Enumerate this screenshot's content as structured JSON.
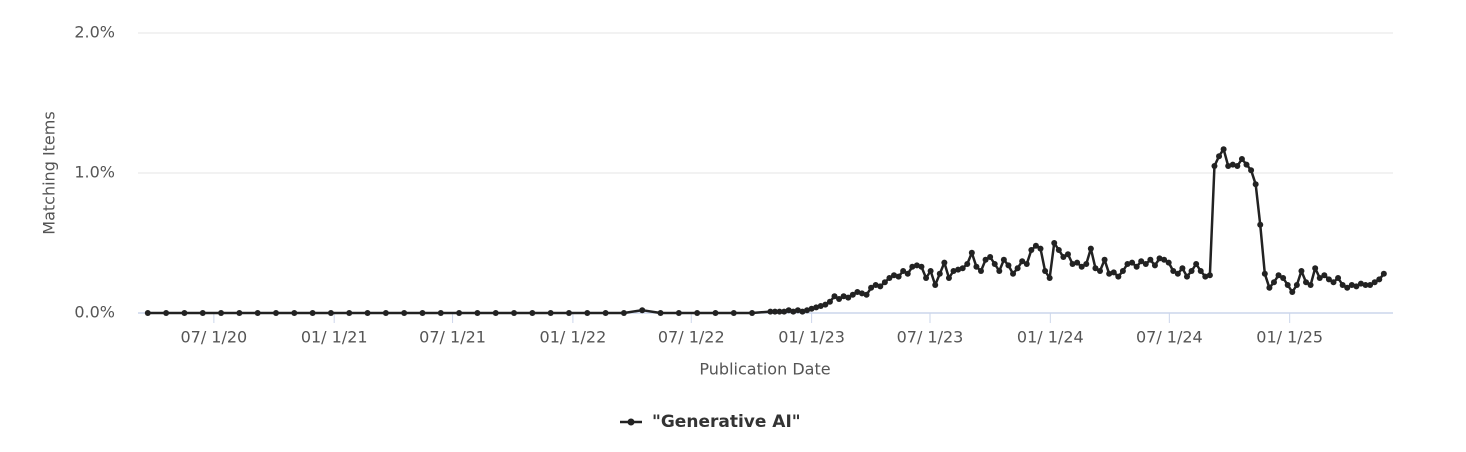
{
  "chart_data": {
    "type": "line",
    "y_label": "Matching Items",
    "x_label": "Publication Date",
    "x": [
      "2020-03-22",
      "2020-04-19",
      "2020-05-17",
      "2020-06-14",
      "2020-07-12",
      "2020-08-09",
      "2020-09-06",
      "2020-10-04",
      "2020-11-01",
      "2020-11-29",
      "2020-12-27",
      "2021-01-24",
      "2021-02-21",
      "2021-03-21",
      "2021-04-18",
      "2021-05-16",
      "2021-06-13",
      "2021-07-11",
      "2021-08-08",
      "2021-09-05",
      "2021-10-03",
      "2021-10-31",
      "2021-11-28",
      "2021-12-26",
      "2022-01-23",
      "2022-02-20",
      "2022-03-20",
      "2022-04-17",
      "2022-05-15",
      "2022-06-12",
      "2022-07-10",
      "2022-08-07",
      "2022-09-04",
      "2022-10-02",
      "2022-10-30",
      "2022-11-06",
      "2022-11-13",
      "2022-11-20",
      "2022-11-27",
      "2022-12-04",
      "2022-12-11",
      "2022-12-18",
      "2022-12-25",
      "2023-01-01",
      "2023-01-08",
      "2023-01-15",
      "2023-01-22",
      "2023-01-29",
      "2023-02-05",
      "2023-02-12",
      "2023-02-19",
      "2023-02-26",
      "2023-03-05",
      "2023-03-12",
      "2023-03-19",
      "2023-03-26",
      "2023-04-02",
      "2023-04-09",
      "2023-04-16",
      "2023-04-23",
      "2023-04-30",
      "2023-05-07",
      "2023-05-14",
      "2023-05-21",
      "2023-05-28",
      "2023-06-04",
      "2023-06-11",
      "2023-06-18",
      "2023-06-25",
      "2023-07-02",
      "2023-07-09",
      "2023-07-16",
      "2023-07-23",
      "2023-07-30",
      "2023-08-06",
      "2023-08-13",
      "2023-08-20",
      "2023-08-27",
      "2023-09-03",
      "2023-09-10",
      "2023-09-17",
      "2023-09-24",
      "2023-10-01",
      "2023-10-08",
      "2023-10-15",
      "2023-10-22",
      "2023-10-29",
      "2023-11-05",
      "2023-11-12",
      "2023-11-19",
      "2023-11-26",
      "2023-12-03",
      "2023-12-10",
      "2023-12-17",
      "2023-12-24",
      "2023-12-31",
      "2024-01-07",
      "2024-01-14",
      "2024-01-21",
      "2024-01-28",
      "2024-02-04",
      "2024-02-11",
      "2024-02-18",
      "2024-02-25",
      "2024-03-03",
      "2024-03-10",
      "2024-03-17",
      "2024-03-24",
      "2024-03-31",
      "2024-04-07",
      "2024-04-14",
      "2024-04-21",
      "2024-04-28",
      "2024-05-05",
      "2024-05-12",
      "2024-05-19",
      "2024-05-26",
      "2024-06-02",
      "2024-06-09",
      "2024-06-16",
      "2024-06-23",
      "2024-06-30",
      "2024-07-07",
      "2024-07-14",
      "2024-07-21",
      "2024-07-28",
      "2024-08-04",
      "2024-08-11",
      "2024-08-18",
      "2024-08-25",
      "2024-09-01",
      "2024-09-08",
      "2024-09-15",
      "2024-09-22",
      "2024-09-29",
      "2024-10-06",
      "2024-10-13",
      "2024-10-20",
      "2024-10-27",
      "2024-11-03",
      "2024-11-10",
      "2024-11-17",
      "2024-11-24",
      "2024-12-01",
      "2024-12-08",
      "2024-12-15",
      "2024-12-22",
      "2024-12-29",
      "2025-01-05",
      "2025-01-12",
      "2025-01-19",
      "2025-01-26",
      "2025-02-02",
      "2025-02-09",
      "2025-02-16",
      "2025-02-23",
      "2025-03-02",
      "2025-03-09",
      "2025-03-16",
      "2025-03-23",
      "2025-03-30",
      "2025-04-06",
      "2025-04-13",
      "2025-04-20",
      "2025-04-27",
      "2025-05-04",
      "2025-05-11",
      "2025-05-18",
      "2025-05-25"
    ],
    "series": [
      {
        "name": "\"Generative AI\"",
        "color": "#222222",
        "values": [
          0,
          0,
          0,
          0,
          0,
          0,
          0,
          0,
          0,
          0,
          0,
          0,
          0,
          0,
          0,
          0,
          0,
          0,
          0,
          0,
          0,
          0,
          0,
          0,
          0,
          0,
          0,
          0.02,
          0,
          0,
          0,
          0,
          0,
          0,
          0.01,
          0.01,
          0.01,
          0.01,
          0.02,
          0.01,
          0.02,
          0.01,
          0.02,
          0.03,
          0.04,
          0.05,
          0.06,
          0.08,
          0.12,
          0.1,
          0.12,
          0.11,
          0.13,
          0.15,
          0.14,
          0.13,
          0.18,
          0.2,
          0.19,
          0.22,
          0.25,
          0.27,
          0.26,
          0.3,
          0.28,
          0.33,
          0.34,
          0.33,
          0.25,
          0.3,
          0.2,
          0.28,
          0.36,
          0.25,
          0.3,
          0.31,
          0.32,
          0.35,
          0.43,
          0.33,
          0.3,
          0.38,
          0.4,
          0.35,
          0.3,
          0.38,
          0.34,
          0.28,
          0.32,
          0.37,
          0.35,
          0.45,
          0.48,
          0.46,
          0.3,
          0.25,
          0.5,
          0.45,
          0.4,
          0.42,
          0.35,
          0.36,
          0.33,
          0.35,
          0.46,
          0.32,
          0.3,
          0.38,
          0.28,
          0.29,
          0.26,
          0.3,
          0.35,
          0.36,
          0.33,
          0.37,
          0.35,
          0.38,
          0.34,
          0.39,
          0.38,
          0.36,
          0.3,
          0.28,
          0.32,
          0.26,
          0.3,
          0.35,
          0.3,
          0.26,
          0.27,
          1.05,
          1.12,
          1.17,
          1.05,
          1.06,
          1.05,
          1.1,
          1.06,
          1.02,
          0.92,
          0.63,
          0.28,
          0.18,
          0.22,
          0.27,
          0.25,
          0.2,
          0.15,
          0.2,
          0.3,
          0.22,
          0.2,
          0.32,
          0.25,
          0.27,
          0.24,
          0.22,
          0.25,
          0.2,
          0.18,
          0.2,
          0.19,
          0.21,
          0.2,
          0.2,
          0.22,
          0.24,
          0.28
        ]
      }
    ],
    "xlim": [
      "2020-03-07",
      "2025-06-08"
    ],
    "xticks": [
      {
        "value": "2020-07-01",
        "label": "07/ 1/20"
      },
      {
        "value": "2021-01-01",
        "label": "01/ 1/21"
      },
      {
        "value": "2021-07-01",
        "label": "07/ 1/21"
      },
      {
        "value": "2022-01-01",
        "label": "01/ 1/22"
      },
      {
        "value": "2022-07-01",
        "label": "07/ 1/22"
      },
      {
        "value": "2023-01-01",
        "label": "01/ 1/23"
      },
      {
        "value": "2023-07-01",
        "label": "07/ 1/23"
      },
      {
        "value": "2024-01-01",
        "label": "01/ 1/24"
      },
      {
        "value": "2024-07-01",
        "label": "07/ 1/24"
      },
      {
        "value": "2025-01-01",
        "label": "01/ 1/25"
      }
    ],
    "ylim": [
      0,
      2
    ],
    "yticks": [
      {
        "value": 0,
        "label": "0.0%"
      },
      {
        "value": 1,
        "label": "1.0%"
      },
      {
        "value": 2,
        "label": "2.0%"
      }
    ],
    "grid": true,
    "legend": "bottom"
  }
}
